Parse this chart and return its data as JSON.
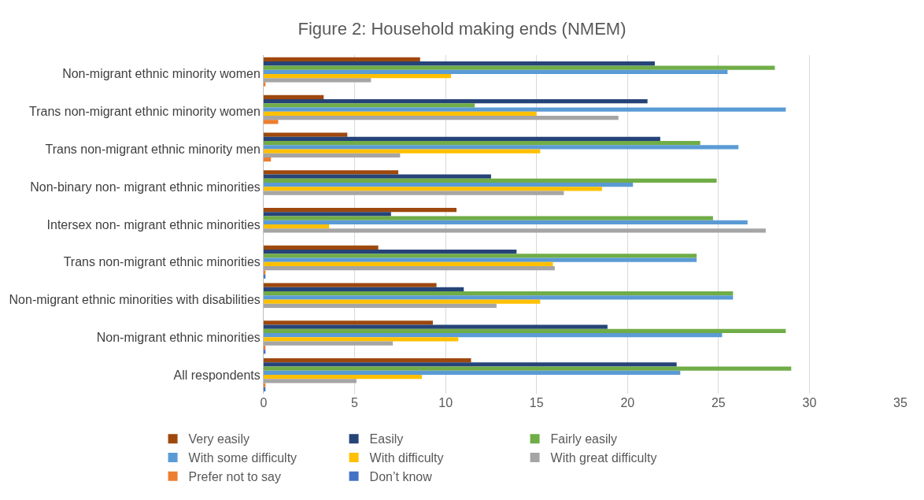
{
  "chart_data": {
    "type": "bar",
    "orientation": "horizontal",
    "title": "Figure 2: Household making ends (NMEM)",
    "categories": [
      "Non-migrant ethnic minority women",
      "Trans non-migrant ethnic minority women",
      "Trans non-migrant ethnic minority men",
      "Non-binary non- migrant ethnic minorities",
      "Intersex non- migrant ethnic minorities",
      "Trans non-migrant ethnic minorities",
      "Non-migrant ethnic minorities with disabilities",
      "Non-migrant ethnic minorities",
      "All respondents"
    ],
    "series": [
      {
        "name": "Very easily",
        "color": "#9e480e",
        "values": [
          8.6,
          3.3,
          4.6,
          7.4,
          10.6,
          6.3,
          9.5,
          9.3,
          11.4
        ]
      },
      {
        "name": "Easily",
        "color": "#264478",
        "values": [
          21.5,
          21.1,
          21.8,
          12.5,
          7.0,
          13.9,
          11.0,
          18.9,
          22.7
        ]
      },
      {
        "name": "Fairly easily",
        "color": "#70ad47",
        "values": [
          28.1,
          11.6,
          24.0,
          24.9,
          24.7,
          23.8,
          25.8,
          28.7,
          29.0
        ]
      },
      {
        "name": "With some difficulty",
        "color": "#5b9bd5",
        "values": [
          25.5,
          28.7,
          26.1,
          20.3,
          26.6,
          23.8,
          25.8,
          25.2,
          22.9
        ]
      },
      {
        "name": "With difficulty",
        "color": "#ffc000",
        "values": [
          10.3,
          15.0,
          15.2,
          18.6,
          3.6,
          15.9,
          15.2,
          10.7,
          8.7
        ]
      },
      {
        "name": "With great difficulty",
        "color": "#a5a5a5",
        "values": [
          5.9,
          19.5,
          7.5,
          16.5,
          27.6,
          16.0,
          12.8,
          7.1,
          5.1
        ]
      },
      {
        "name": "Prefer not to say",
        "color": "#ed7d31",
        "values": [
          0.1,
          0.8,
          0.4,
          0,
          0,
          0.1,
          0,
          0.1,
          0.1
        ]
      },
      {
        "name": "Don’t know",
        "color": "#4472c4",
        "values": [
          0,
          0,
          0,
          0,
          0,
          0.1,
          0,
          0.1,
          0.1
        ]
      }
    ],
    "xlim": [
      0,
      35
    ],
    "xticks": [
      0,
      5,
      10,
      15,
      20,
      25,
      30,
      35
    ],
    "grid": "x",
    "legend": "bottom"
  }
}
